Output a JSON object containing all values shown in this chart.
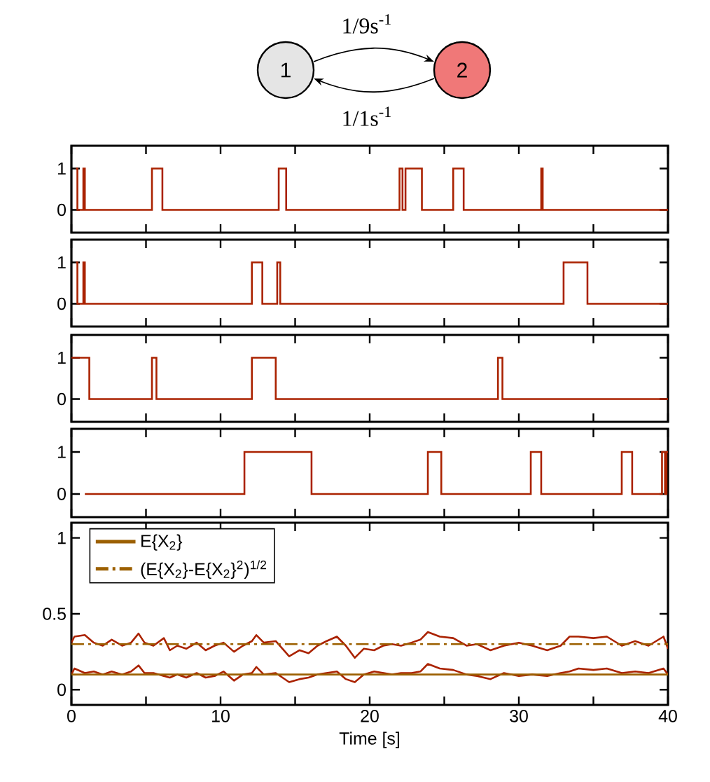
{
  "chart_data": [
    {
      "type": "step",
      "xlim": [
        0,
        40
      ],
      "ylim": [
        -0.55,
        1.55
      ],
      "xticks": [
        0,
        {
          "value": 5,
          "label": null
        },
        10,
        {
          "value": 15,
          "label": null
        },
        20,
        {
          "value": 25,
          "label": null
        },
        30,
        {
          "value": 35,
          "label": null
        },
        40
      ],
      "yticks": [
        0,
        1
      ],
      "tick_labels": "y",
      "color": "#aa2200",
      "x": [
        0.3,
        0.4,
        0.8,
        0.9,
        5.4,
        6.1,
        13.9,
        14.4,
        22.0,
        22.2,
        22.4,
        23.5,
        25.6,
        26.3,
        31.5,
        31.6,
        40
      ],
      "values": [
        1,
        0,
        1,
        0,
        1,
        0,
        1,
        0,
        1,
        0,
        1,
        0,
        1,
        0,
        1,
        0,
        0
      ],
      "annotations": [
        "1",
        "2",
        "1/9s$^{-1}$",
        "1/1s$^{-1}$"
      ]
    },
    {
      "type": "step",
      "xlim": [
        0,
        40
      ],
      "ylim": [
        -0.55,
        1.55
      ],
      "xticks": [
        0,
        {
          "value": 5,
          "label": null
        },
        10,
        {
          "value": 15,
          "label": null
        },
        20,
        {
          "value": 25,
          "label": null
        },
        30,
        {
          "value": 35,
          "label": null
        },
        40
      ],
      "yticks": [
        0,
        1
      ],
      "tick_labels": "y",
      "color": "#aa2200",
      "x": [
        0.3,
        0.4,
        0.8,
        0.9,
        12.1,
        12.8,
        13.8,
        14.0,
        33.0,
        34.6,
        40
      ],
      "values": [
        1,
        0,
        1,
        0,
        1,
        0,
        1,
        0,
        1,
        0,
        0
      ]
    },
    {
      "type": "step",
      "xlim": [
        0,
        40
      ],
      "ylim": [
        -0.55,
        1.55
      ],
      "xticks": [
        0,
        {
          "value": 5,
          "label": null
        },
        10,
        {
          "value": 15,
          "label": null
        },
        20,
        {
          "value": 25,
          "label": null
        },
        30,
        {
          "value": 35,
          "label": null
        },
        40
      ],
      "yticks": [
        0,
        1
      ],
      "tick_labels": "y",
      "color": "#aa2200",
      "x": [
        0,
        1.2,
        5.4,
        5.7,
        12.1,
        13.7,
        28.6,
        28.9,
        40
      ],
      "values": [
        1,
        0,
        1,
        0,
        1,
        0,
        1,
        0,
        0
      ]
    },
    {
      "type": "step",
      "xlim": [
        0,
        40
      ],
      "ylim": [
        -0.55,
        1.55
      ],
      "xticks": [
        0,
        {
          "value": 5,
          "label": null
        },
        10,
        {
          "value": 15,
          "label": null
        },
        20,
        {
          "value": 25,
          "label": null
        },
        30,
        {
          "value": 35,
          "label": null
        },
        40
      ],
      "yticks": [
        0,
        1
      ],
      "tick_labels": "y",
      "color": "#aa2200",
      "x": [
        0.9,
        11.6,
        16.1,
        23.9,
        24.8,
        30.8,
        31.5,
        36.9,
        37.6,
        39.6,
        39.8,
        39.9,
        40
      ],
      "values": [
        0,
        1,
        0,
        1,
        0,
        1,
        0,
        1,
        0,
        1,
        0,
        1,
        1
      ]
    },
    {
      "type": "line",
      "xlim": [
        0,
        40
      ],
      "ylim": [
        -0.1,
        1.1
      ],
      "xticks": [
        0,
        {
          "value": 5,
          "label": null
        },
        10,
        {
          "value": 15,
          "label": null
        },
        20,
        {
          "value": 25,
          "label": null
        },
        30,
        {
          "value": 35,
          "label": null
        },
        40
      ],
      "yticks": [
        0,
        0.5,
        1
      ],
      "xlabel": "Time  [s]",
      "legend": "top left",
      "series": [
        {
          "color": "#aa2200",
          "x": [
            0,
            0.2,
            0.9,
            1.5,
            2.1,
            2.7,
            3.4,
            4.0,
            4.5,
            4.9,
            5.5,
            6.2,
            6.6,
            7.1,
            7.7,
            8.4,
            9.0,
            9.6,
            10.2,
            10.9,
            11.5,
            12.1,
            12.4,
            12.9,
            13.7,
            14.6,
            15.3,
            15.9,
            16.5,
            17.1,
            17.8,
            18.4,
            19.0,
            19.6,
            20.3,
            20.9,
            21.5,
            22.1,
            22.8,
            23.4,
            23.9,
            24.7,
            25.6,
            26.5,
            27.2,
            28.1,
            29.0,
            30.0,
            30.9,
            31.9,
            32.8,
            33.4,
            34.0,
            35.0,
            35.9,
            36.9,
            37.8,
            38.7,
            39.7,
            40
          ],
          "values": [
            0.1,
            0.14,
            0.11,
            0.12,
            0.1,
            0.12,
            0.1,
            0.12,
            0.16,
            0.11,
            0.11,
            0.09,
            0.08,
            0.1,
            0.08,
            0.11,
            0.08,
            0.09,
            0.12,
            0.06,
            0.1,
            0.11,
            0.15,
            0.1,
            0.11,
            0.05,
            0.07,
            0.08,
            0.1,
            0.11,
            0.12,
            0.07,
            0.05,
            0.1,
            0.12,
            0.11,
            0.1,
            0.11,
            0.11,
            0.12,
            0.17,
            0.14,
            0.13,
            0.1,
            0.09,
            0.07,
            0.11,
            0.09,
            0.1,
            0.09,
            0.11,
            0.12,
            0.14,
            0.13,
            0.14,
            0.11,
            0.12,
            0.11,
            0.14,
            0.1
          ]
        },
        {
          "color": "#aa2200",
          "x": [
            0,
            0.2,
            0.9,
            1.5,
            2.1,
            2.7,
            3.4,
            4.0,
            4.5,
            4.9,
            5.5,
            6.2,
            6.6,
            7.1,
            7.7,
            8.4,
            9.0,
            9.6,
            10.2,
            10.9,
            11.5,
            12.1,
            12.4,
            12.9,
            13.7,
            14.6,
            15.3,
            15.9,
            16.5,
            17.1,
            17.8,
            18.4,
            19.0,
            19.6,
            20.3,
            20.9,
            21.5,
            22.1,
            22.8,
            23.4,
            23.9,
            24.7,
            25.6,
            26.5,
            27.2,
            28.1,
            29.0,
            30.0,
            30.9,
            31.9,
            32.8,
            33.4,
            34.0,
            35.0,
            35.9,
            36.9,
            37.8,
            38.7,
            39.7,
            40
          ],
          "values": [
            0.31,
            0.35,
            0.36,
            0.31,
            0.29,
            0.33,
            0.29,
            0.31,
            0.37,
            0.31,
            0.29,
            0.34,
            0.26,
            0.29,
            0.27,
            0.31,
            0.26,
            0.29,
            0.31,
            0.25,
            0.29,
            0.32,
            0.36,
            0.31,
            0.32,
            0.22,
            0.26,
            0.24,
            0.29,
            0.32,
            0.35,
            0.29,
            0.21,
            0.27,
            0.26,
            0.29,
            0.3,
            0.29,
            0.31,
            0.33,
            0.38,
            0.35,
            0.34,
            0.29,
            0.3,
            0.26,
            0.29,
            0.31,
            0.29,
            0.26,
            0.29,
            0.35,
            0.35,
            0.34,
            0.35,
            0.29,
            0.32,
            0.29,
            0.35,
            0.27
          ]
        },
        {
          "name": "E{X$_{2}$}",
          "color": "#9c6000",
          "line_style": "solid",
          "x": [
            0,
            40
          ],
          "values": [
            0.1,
            0.1
          ]
        },
        {
          "name": "(E{X$_{2}$}-E{X$_{2}$}$^{2}$)$^{1/2}$",
          "color": "#9c6000",
          "line_style": "dashed",
          "x": [
            0,
            40
          ],
          "values": [
            0.3,
            0.3
          ]
        }
      ]
    }
  ]
}
